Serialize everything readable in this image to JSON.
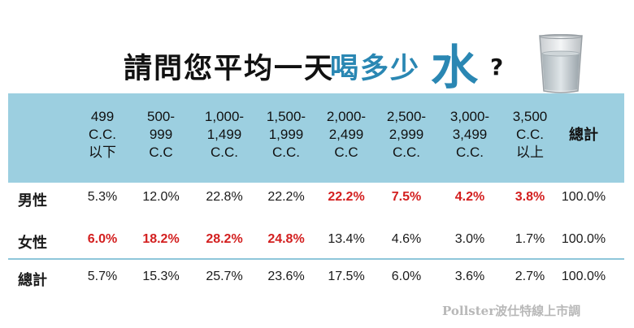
{
  "title": {
    "main": "請問您平均一天",
    "drink": "喝多少",
    "water": "水",
    "question_mark": "?"
  },
  "table": {
    "columns": [
      "499\nC.C.\n以下",
      "500-\n999\nC.C",
      "1,000-\n1,499\nC.C.",
      "1,500-\n1,999\nC.C.",
      "2,000-\n2,499\nC.C",
      "2,500-\n2,999\nC.C.",
      "3,000-\n3,499\nC.C.",
      "3,500\nC.C.\n以上",
      "總計"
    ],
    "rows": [
      {
        "label": "男性",
        "values": [
          "5.3%",
          "12.0%",
          "22.8%",
          "22.2%",
          "22.2%",
          "7.5%",
          "4.2%",
          "3.8%",
          "100.0%"
        ],
        "highlight": [
          false,
          false,
          false,
          false,
          true,
          true,
          true,
          true,
          false
        ]
      },
      {
        "label": "女性",
        "values": [
          "6.0%",
          "18.2%",
          "28.2%",
          "24.8%",
          "13.4%",
          "4.6%",
          "3.0%",
          "1.7%",
          "100.0%"
        ],
        "highlight": [
          true,
          true,
          true,
          true,
          false,
          false,
          false,
          false,
          false
        ]
      },
      {
        "label": "總計",
        "values": [
          "5.7%",
          "15.3%",
          "25.7%",
          "23.6%",
          "17.5%",
          "6.0%",
          "3.6%",
          "2.7%",
          "100.0%"
        ],
        "highlight": [
          false,
          false,
          false,
          false,
          false,
          false,
          false,
          false,
          false
        ]
      }
    ]
  },
  "watermark": "Pollster波仕特線上市調",
  "colors": {
    "header_band": "#9ccfe0",
    "accent_blue": "#2a87b3",
    "highlight_red": "#d31f1f"
  },
  "icons": {
    "glass": "water-glass-icon"
  }
}
